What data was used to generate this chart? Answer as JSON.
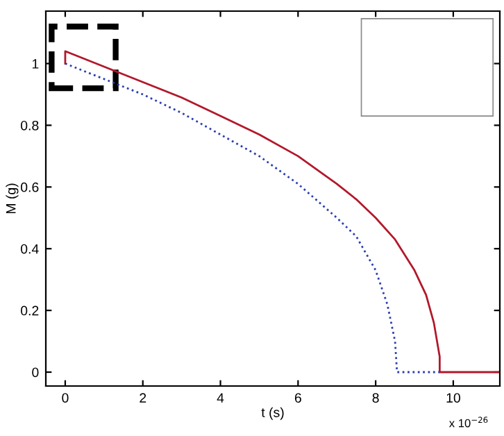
{
  "chart_data": {
    "type": "line",
    "xlabel": "t (s)",
    "ylabel": "M (g)",
    "xlim": [
      -0.5,
      11.2
    ],
    "xticks": [
      0,
      2,
      4,
      6,
      8,
      10
    ],
    "ylim": [
      -0.045,
      1.17
    ],
    "yticks": [
      0,
      0.2,
      0.4,
      0.6,
      0.8,
      1
    ],
    "grid": false,
    "legend": false,
    "annotations": [
      "x 10$^{−26}$"
    ],
    "series": [
      {
        "color": "#b2182b",
        "line_style": "solid",
        "x": [
          0,
          0,
          1,
          2,
          3,
          4,
          5,
          6,
          7,
          7.5,
          8,
          8.5,
          9,
          9.3,
          9.5,
          9.65,
          9.65,
          11.2
        ],
        "values": [
          1.0,
          1.04,
          0.99,
          0.94,
          0.89,
          0.83,
          0.77,
          0.7,
          0.61,
          0.56,
          0.5,
          0.43,
          0.33,
          0.25,
          0.16,
          0.05,
          0,
          0
        ]
      },
      {
        "color": "#2b3fb0",
        "line_style": "dotted",
        "x": [
          0,
          1,
          2,
          3,
          4,
          5,
          6,
          7,
          7.5,
          8,
          8.3,
          8.5,
          8.55,
          9.65
        ],
        "values": [
          1.0,
          0.95,
          0.9,
          0.84,
          0.77,
          0.7,
          0.61,
          0.5,
          0.44,
          0.33,
          0.22,
          0.1,
          0,
          0
        ]
      }
    ]
  }
}
